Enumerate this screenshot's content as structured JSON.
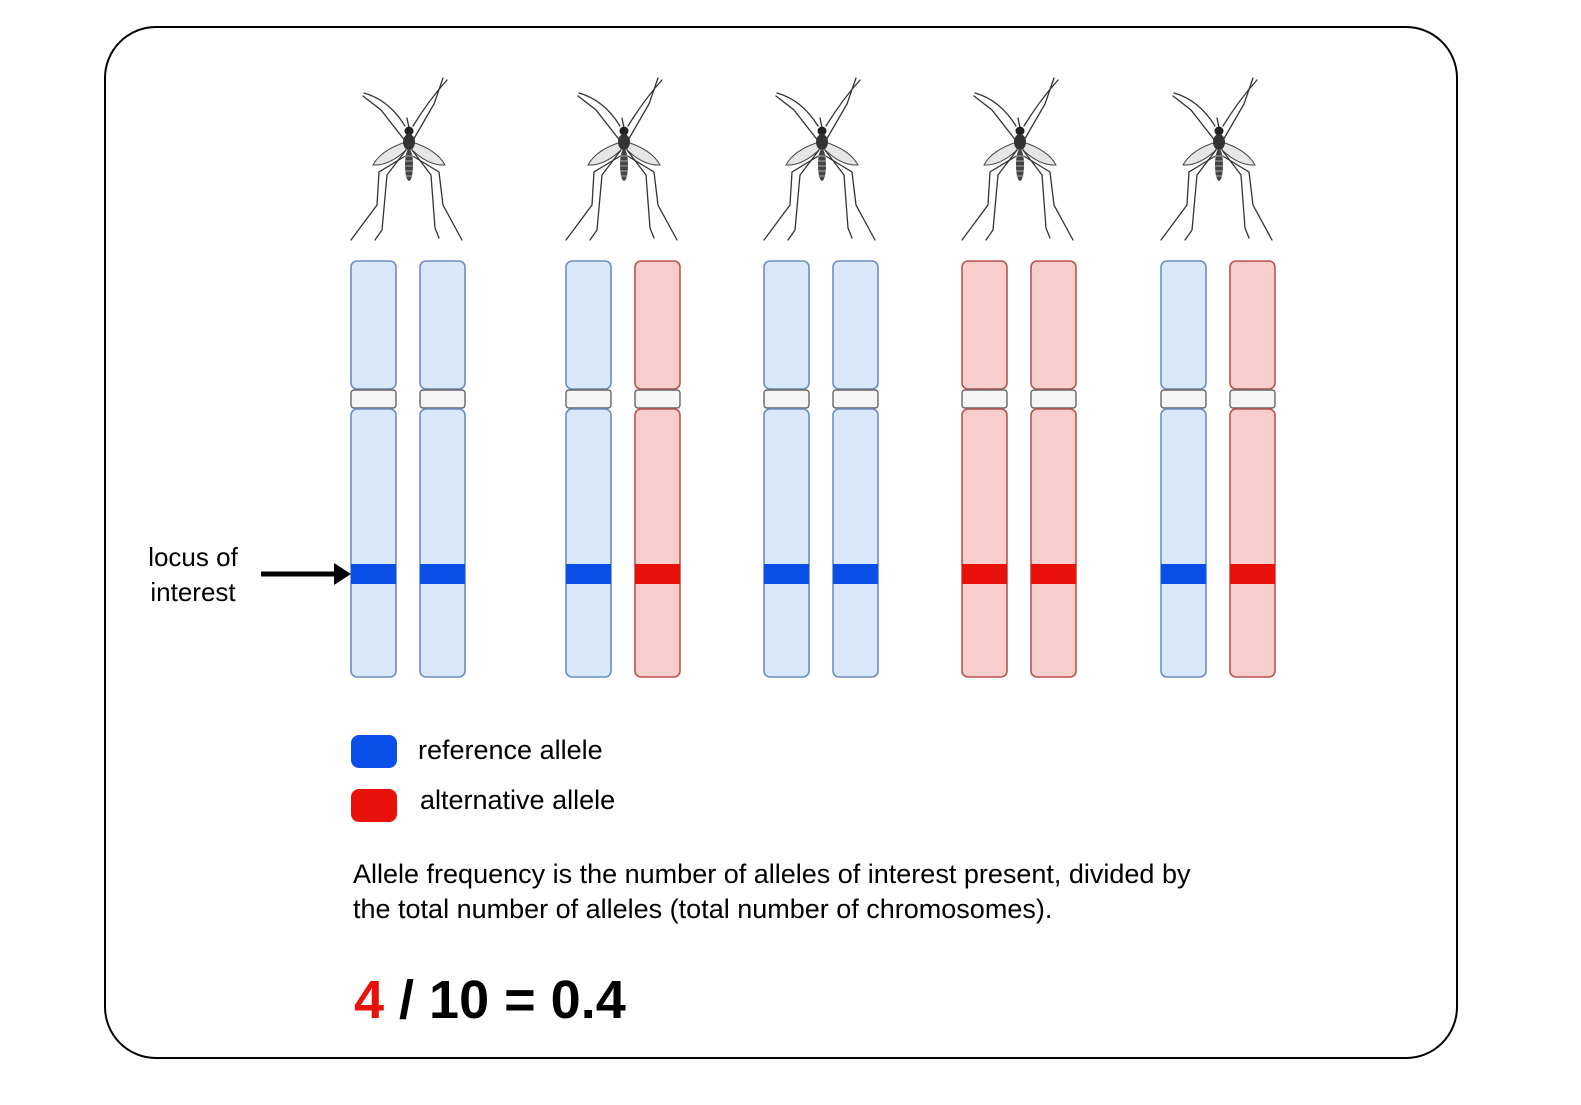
{
  "locus_label_line1": "locus of",
  "locus_label_line2": "interest",
  "legend": {
    "reference": {
      "label": "reference allele",
      "color": "#0a4fe8"
    },
    "alternative": {
      "label": "alternative allele",
      "color": "#e8120b"
    }
  },
  "explanation_line1": "Allele frequency is the number of alleles of interest present, divided by",
  "explanation_line2": "the total number of alleles (total number of chromosomes).",
  "equation": {
    "numerator": "4",
    "rest": " / 10 = 0.4"
  },
  "mosquitoes": [
    {
      "chromosomes": [
        "reference",
        "reference"
      ]
    },
    {
      "chromosomes": [
        "reference",
        "alternative"
      ]
    },
    {
      "chromosomes": [
        "reference",
        "reference"
      ]
    },
    {
      "chromosomes": [
        "alternative",
        "alternative"
      ]
    },
    {
      "chromosomes": [
        "reference",
        "alternative"
      ]
    }
  ],
  "colors": {
    "reference_fill": "#dae8fc",
    "reference_stroke": "#6c8ebf",
    "alternative_fill": "#f8cecc",
    "alternative_stroke": "#b85450",
    "centromere_fill": "#f5f5f5",
    "centromere_stroke": "#666666"
  },
  "icons": {
    "insect": "mosquito-icon",
    "pointer": "arrow-right-icon"
  }
}
